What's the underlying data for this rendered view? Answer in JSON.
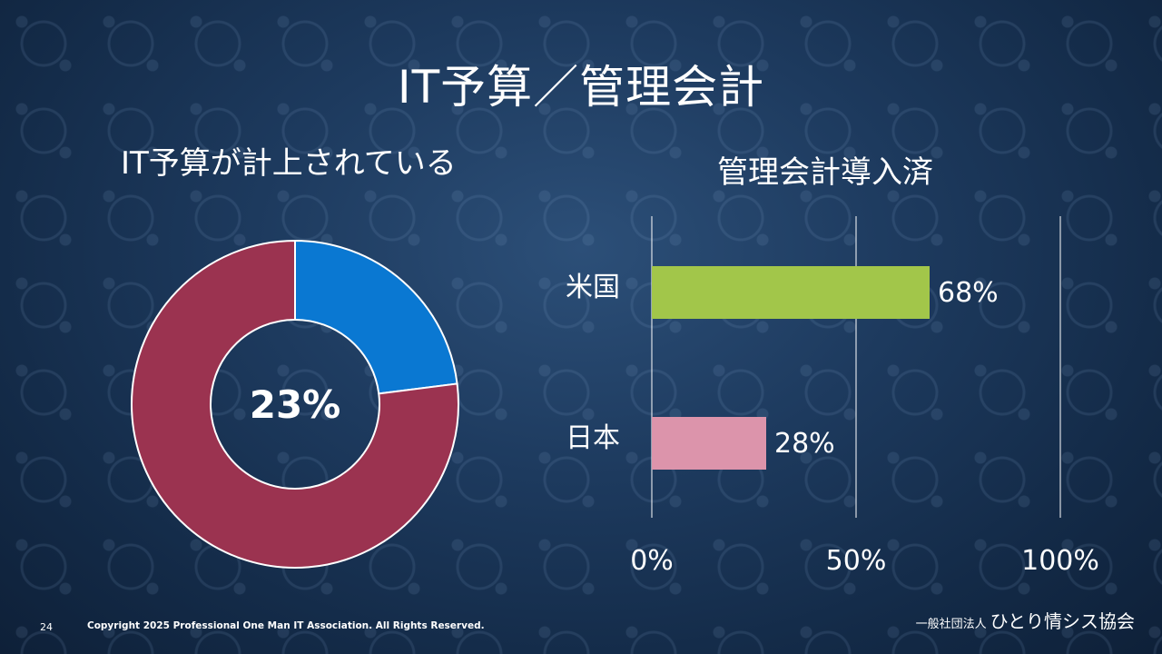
{
  "slide": {
    "title": "IT予算／管理会計",
    "left_subtitle": "IT予算が計上されている",
    "right_subtitle": "管理会計導入済",
    "page_number": "24",
    "copyright": "Copyright 2025 Professional One Man IT Association. All Rights Reserved.",
    "org_prefix": "一般社団法人",
    "org_name": "ひとり情シス協会"
  },
  "colors": {
    "donut_value": "#0a78d2",
    "donut_rest": "#9b3350",
    "bar_us": "#a2c64a",
    "bar_japan": "#dc94ab"
  },
  "chart_data": [
    {
      "type": "pie",
      "donut": true,
      "center_label": "23%",
      "values": [
        23,
        77
      ]
    },
    {
      "type": "bar",
      "orientation": "horizontal",
      "categories": [
        "米国",
        "日本"
      ],
      "values": [
        68,
        28
      ],
      "value_labels": [
        "68%",
        "28%"
      ],
      "xlim": [
        0,
        100
      ],
      "ticks": [
        0,
        50,
        100
      ],
      "tick_labels": [
        "0%",
        "50%",
        "100%"
      ],
      "grid": true
    }
  ]
}
